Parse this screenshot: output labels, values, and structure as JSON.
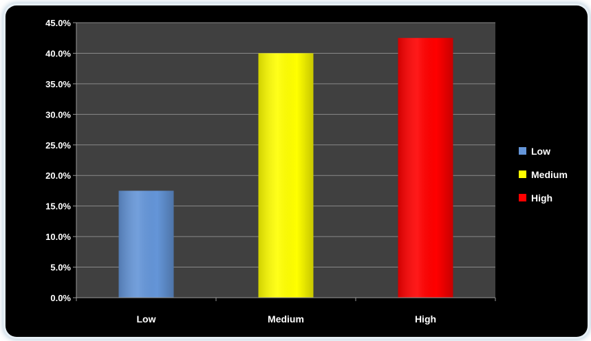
{
  "chart_data": {
    "type": "bar",
    "categories": [
      "Low",
      "Medium",
      "High"
    ],
    "values": [
      17.5,
      40.0,
      42.5
    ],
    "colors": [
      "#6495d8",
      "#ffff00",
      "#ff0000"
    ],
    "y_tick_labels": [
      "0.0%",
      "5.0%",
      "10.0%",
      "15.0%",
      "20.0%",
      "25.0%",
      "30.0%",
      "35.0%",
      "40.0%",
      "45.0%"
    ],
    "ylim": [
      0,
      45
    ],
    "y_step": 5,
    "grid": true,
    "plot_background": "#404040",
    "chart_background": "#000000",
    "legend": {
      "position": "right",
      "entries": [
        {
          "label": "Low",
          "color": "#6495d8"
        },
        {
          "label": "Medium",
          "color": "#ffff00"
        },
        {
          "label": "High",
          "color": "#ff0000"
        }
      ]
    },
    "title": "",
    "xlabel": "",
    "ylabel": ""
  }
}
